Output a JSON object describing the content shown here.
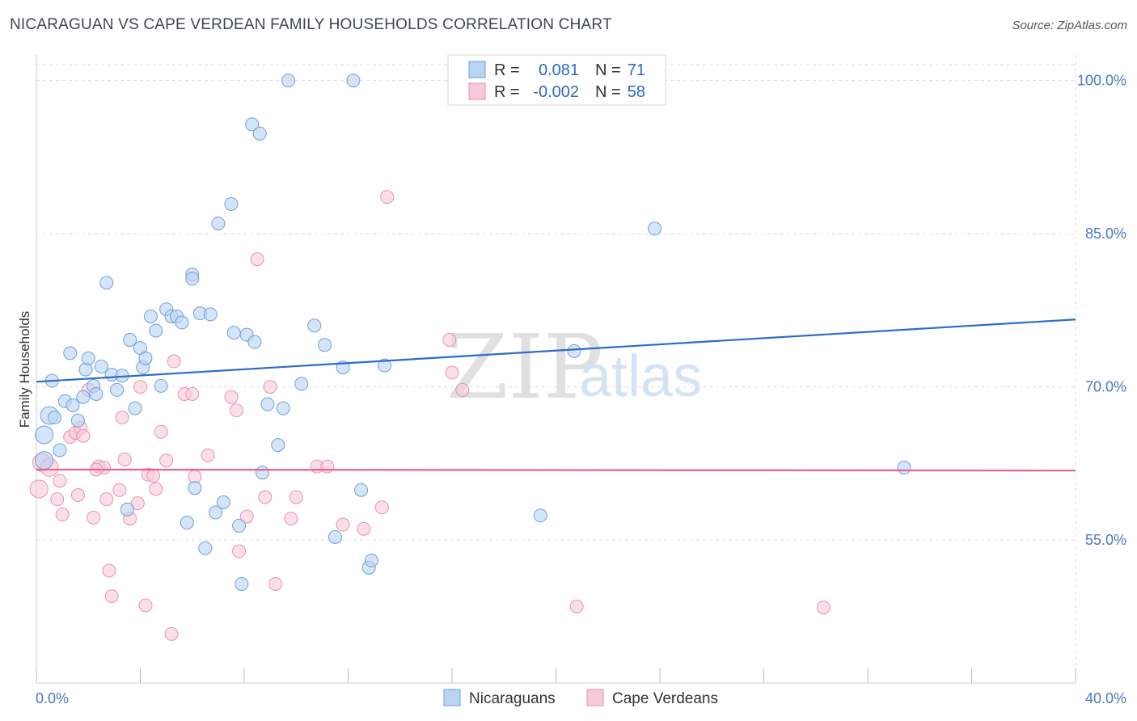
{
  "title": "NICARAGUAN VS CAPE VERDEAN FAMILY HOUSEHOLDS CORRELATION CHART",
  "source": "Source: ZipAtlas.com",
  "watermark": {
    "zip": "ZIP",
    "atlas": "atlas"
  },
  "colors": {
    "blue_fill": "#b9d3f3",
    "blue_stroke": "#6f9fdc",
    "blue_line": "#2a6dc9",
    "pink_fill": "#f8c9d7",
    "pink_stroke": "#e993ad",
    "pink_line": "#e8628f",
    "grid": "#dddddd",
    "tick_text": "#4a78c2"
  },
  "legend": {
    "rows": [
      {
        "r_label": "R =",
        "r_value": "0.081",
        "n_label": "N =",
        "n_value": "71"
      },
      {
        "r_label": "R =",
        "r_value": "-0.002",
        "n_label": "N =",
        "n_value": "58"
      }
    ]
  },
  "chart_data": {
    "type": "scatter",
    "xlabel": "",
    "ylabel": "Family Households",
    "xlim": [
      0,
      40
    ],
    "ylim": [
      41,
      102.5
    ],
    "x_tick_labels": [
      "0.0%",
      "40.0%"
    ],
    "y_ticks": [
      {
        "value": 55,
        "label": "55.0%"
      },
      {
        "value": 70,
        "label": "70.0%"
      },
      {
        "value": 85,
        "label": "85.0%"
      },
      {
        "value": 100,
        "label": "100.0%"
      }
    ],
    "grid": true,
    "legend_position": "bottom",
    "series": [
      {
        "name": "Nicaraguans",
        "trend": {
          "x": [
            0,
            40
          ],
          "y": [
            70.5,
            76.6
          ]
        },
        "points": [
          [
            0.3,
            62.8
          ],
          [
            0.3,
            65.3
          ],
          [
            0.5,
            67.2
          ],
          [
            0.6,
            70.6
          ],
          [
            0.7,
            67.0
          ],
          [
            0.9,
            63.8
          ],
          [
            1.1,
            68.6
          ],
          [
            1.3,
            73.3
          ],
          [
            1.4,
            68.2
          ],
          [
            1.6,
            66.7
          ],
          [
            1.8,
            69.0
          ],
          [
            1.9,
            71.7
          ],
          [
            2.0,
            72.8
          ],
          [
            2.2,
            70.1
          ],
          [
            2.3,
            69.3
          ],
          [
            2.5,
            72.0
          ],
          [
            2.7,
            80.2
          ],
          [
            2.9,
            71.2
          ],
          [
            3.1,
            69.7
          ],
          [
            3.3,
            71.1
          ],
          [
            3.5,
            58.0
          ],
          [
            3.6,
            74.6
          ],
          [
            3.8,
            67.9
          ],
          [
            4.0,
            73.8
          ],
          [
            4.1,
            71.9
          ],
          [
            4.2,
            72.8
          ],
          [
            4.4,
            76.9
          ],
          [
            4.6,
            75.5
          ],
          [
            4.8,
            70.1
          ],
          [
            5.0,
            77.6
          ],
          [
            5.2,
            76.9
          ],
          [
            5.4,
            76.9
          ],
          [
            5.6,
            76.3
          ],
          [
            5.8,
            56.7
          ],
          [
            6.0,
            81.0
          ],
          [
            6.0,
            80.6
          ],
          [
            6.3,
            77.2
          ],
          [
            6.5,
            54.2
          ],
          [
            6.7,
            77.1
          ],
          [
            6.9,
            57.7
          ],
          [
            7.0,
            86.0
          ],
          [
            7.2,
            58.7
          ],
          [
            7.5,
            87.9
          ],
          [
            7.6,
            75.3
          ],
          [
            7.8,
            56.4
          ],
          [
            7.9,
            50.7
          ],
          [
            8.1,
            75.1
          ],
          [
            8.3,
            95.7
          ],
          [
            8.4,
            74.4
          ],
          [
            8.6,
            94.8
          ],
          [
            8.7,
            61.6
          ],
          [
            8.9,
            68.3
          ],
          [
            9.3,
            64.3
          ],
          [
            9.5,
            67.9
          ],
          [
            9.7,
            100.0
          ],
          [
            10.2,
            70.3
          ],
          [
            10.7,
            76.0
          ],
          [
            11.1,
            74.1
          ],
          [
            11.5,
            55.3
          ],
          [
            11.8,
            71.9
          ],
          [
            12.5,
            59.9
          ],
          [
            12.8,
            52.3
          ],
          [
            12.9,
            53.0
          ],
          [
            13.4,
            72.1
          ],
          [
            19.4,
            57.4
          ],
          [
            20.7,
            73.5
          ],
          [
            21.9,
            100.0
          ],
          [
            23.8,
            85.5
          ],
          [
            33.4,
            62.1
          ],
          [
            6.1,
            60.1
          ],
          [
            12.2,
            100.0
          ]
        ]
      },
      {
        "name": "Cape Verdeans",
        "trend": {
          "x": [
            0,
            40
          ],
          "y": [
            61.9,
            61.8
          ]
        },
        "points": [
          [
            0.1,
            60.0
          ],
          [
            0.2,
            62.6
          ],
          [
            0.5,
            62.1
          ],
          [
            0.8,
            59.0
          ],
          [
            0.9,
            60.8
          ],
          [
            1.0,
            57.5
          ],
          [
            1.3,
            65.1
          ],
          [
            1.5,
            65.5
          ],
          [
            1.6,
            59.4
          ],
          [
            1.7,
            66.0
          ],
          [
            1.8,
            65.2
          ],
          [
            2.0,
            69.7
          ],
          [
            2.2,
            57.2
          ],
          [
            2.4,
            62.2
          ],
          [
            2.6,
            62.1
          ],
          [
            2.7,
            59.0
          ],
          [
            2.8,
            52.0
          ],
          [
            2.9,
            49.5
          ],
          [
            3.2,
            59.9
          ],
          [
            3.3,
            67.0
          ],
          [
            3.4,
            62.9
          ],
          [
            3.6,
            57.1
          ],
          [
            3.9,
            58.6
          ],
          [
            4.0,
            70.0
          ],
          [
            4.2,
            48.6
          ],
          [
            4.3,
            61.4
          ],
          [
            4.5,
            61.3
          ],
          [
            4.6,
            60.0
          ],
          [
            4.8,
            65.6
          ],
          [
            5.0,
            62.8
          ],
          [
            5.2,
            45.8
          ],
          [
            5.3,
            72.5
          ],
          [
            5.7,
            69.3
          ],
          [
            6.0,
            69.3
          ],
          [
            6.1,
            61.2
          ],
          [
            6.6,
            63.3
          ],
          [
            7.5,
            69.0
          ],
          [
            7.7,
            67.7
          ],
          [
            7.8,
            53.9
          ],
          [
            8.1,
            57.3
          ],
          [
            8.5,
            82.5
          ],
          [
            8.8,
            59.2
          ],
          [
            9.0,
            70.0
          ],
          [
            9.2,
            50.7
          ],
          [
            9.8,
            57.1
          ],
          [
            10.0,
            59.2
          ],
          [
            10.8,
            62.2
          ],
          [
            11.2,
            62.2
          ],
          [
            11.8,
            56.5
          ],
          [
            12.6,
            56.1
          ],
          [
            13.3,
            58.2
          ],
          [
            13.5,
            88.6
          ],
          [
            15.9,
            74.6
          ],
          [
            16.0,
            71.4
          ],
          [
            16.4,
            69.7
          ],
          [
            20.8,
            48.5
          ],
          [
            30.3,
            48.4
          ],
          [
            2.3,
            61.9
          ]
        ]
      }
    ]
  }
}
